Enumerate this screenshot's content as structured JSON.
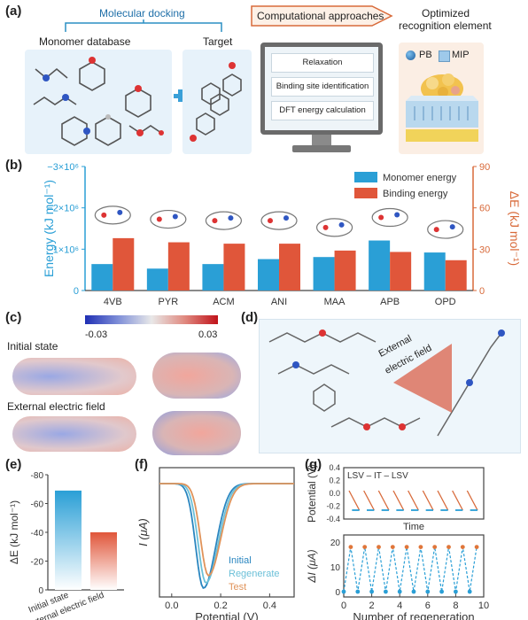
{
  "panel_a": {
    "label": "(a)",
    "molecular_docking": "Molecular docking",
    "monomer_database": "Monomer database",
    "target": "Target",
    "computational_approaches": "Computational approaches",
    "optimized_line1": "Optimized",
    "optimized_line2": "recognition element",
    "steps": [
      "Relaxation",
      "Binding site identification",
      "DFT energy calculation"
    ],
    "legend_pb": "PB",
    "legend_mip": "MIP",
    "colors": {
      "accent": "#2a8fc4",
      "orange": "#d86a3a"
    }
  },
  "panel_b": {
    "label": "(b)"
  },
  "panel_c": {
    "label": "(c)",
    "scale_min": "-0.03",
    "scale_max": "0.03",
    "initial_state": "Initial state",
    "external_field": "External electric field"
  },
  "panel_d": {
    "label": "(d)",
    "field_line1": "External",
    "field_line2": "electric field"
  },
  "panel_e": {
    "label": "(e)"
  },
  "panel_f": {
    "label": "(f)"
  },
  "panel_g": {
    "label": "(g)",
    "scheme": "LSV – IT – LSV",
    "time": "Time"
  },
  "chart_data": [
    {
      "panel": "b",
      "type": "bar",
      "categories": [
        "4VB",
        "PYR",
        "ACM",
        "ANI",
        "MAA",
        "APB",
        "OPD"
      ],
      "series": [
        {
          "name": "Monomer energy",
          "axis": "left",
          "values": [
            -640000,
            -530000,
            -640000,
            -760000,
            -810000,
            -1210000,
            -920000
          ]
        },
        {
          "name": "Binding energy",
          "axis": "right",
          "values": [
            38,
            35,
            34,
            34,
            29,
            28,
            22
          ]
        }
      ],
      "left_axis": {
        "label": "Energy (kJ mol⁻¹)",
        "ticks": [
          "−3×10⁶",
          "−2×10⁶",
          "−1×10⁶",
          "0"
        ],
        "ylim": [
          0,
          -3000000
        ]
      },
      "right_axis": {
        "label": "ΔE (kJ mol⁻¹)",
        "ticks": [
          "90",
          "60",
          "30",
          "0"
        ],
        "ylim": [
          0,
          90
        ]
      },
      "colors": {
        "monomer": "#2a9fd6",
        "binding": "#e0563a"
      }
    },
    {
      "panel": "e",
      "type": "bar",
      "categories": [
        "Initial state",
        "External electric field"
      ],
      "values": [
        -69,
        -40
      ],
      "ylabel": "ΔE (kJ mol⁻¹)",
      "ylim": [
        0,
        -80
      ],
      "yticks": [
        "-80",
        "-60",
        "-40",
        "-20",
        "0"
      ]
    },
    {
      "panel": "f",
      "type": "line",
      "xlabel": "Potential (V)",
      "ylabel": "I (μA)",
      "xlim": [
        -0.05,
        0.5
      ],
      "xticks": [
        "0.0",
        "0.2",
        "0.4"
      ],
      "series": [
        {
          "name": "Initial",
          "min_x": 0.13,
          "min_y": -1.0,
          "color": "#2a86c0"
        },
        {
          "name": "Regenerate",
          "min_x": 0.14,
          "min_y": -0.95,
          "color": "#6cc0d8"
        },
        {
          "name": "Test",
          "min_x": 0.15,
          "min_y": -0.88,
          "color": "#e0935a"
        }
      ]
    },
    {
      "panel": "g-top",
      "type": "line",
      "ylabel": "Potential (V)",
      "yticks": [
        "0.4",
        "0.2",
        "0.0",
        "-0.2",
        "-0.4"
      ],
      "xlabel": "Time",
      "cycles": 9
    },
    {
      "panel": "g-bottom",
      "type": "scatter",
      "xlabel": "Number of regeneration",
      "ylabel": "ΔI (μA)",
      "xlim": [
        0,
        10
      ],
      "ylim": [
        0,
        20
      ],
      "xticks": [
        "0",
        "2",
        "4",
        "6",
        "8",
        "10"
      ],
      "yticks": [
        "0",
        "10",
        "20"
      ],
      "x": [
        0,
        0.5,
        1,
        1.5,
        2,
        2.5,
        3,
        3.5,
        4,
        4.5,
        5,
        5.5,
        6,
        6.5,
        7,
        7.5,
        8,
        8.5,
        9,
        9.5
      ],
      "y": [
        0,
        18,
        0,
        18,
        0,
        18,
        0,
        18,
        0,
        18,
        0,
        18,
        0,
        18,
        0,
        18,
        0,
        18,
        0,
        18
      ]
    }
  ]
}
